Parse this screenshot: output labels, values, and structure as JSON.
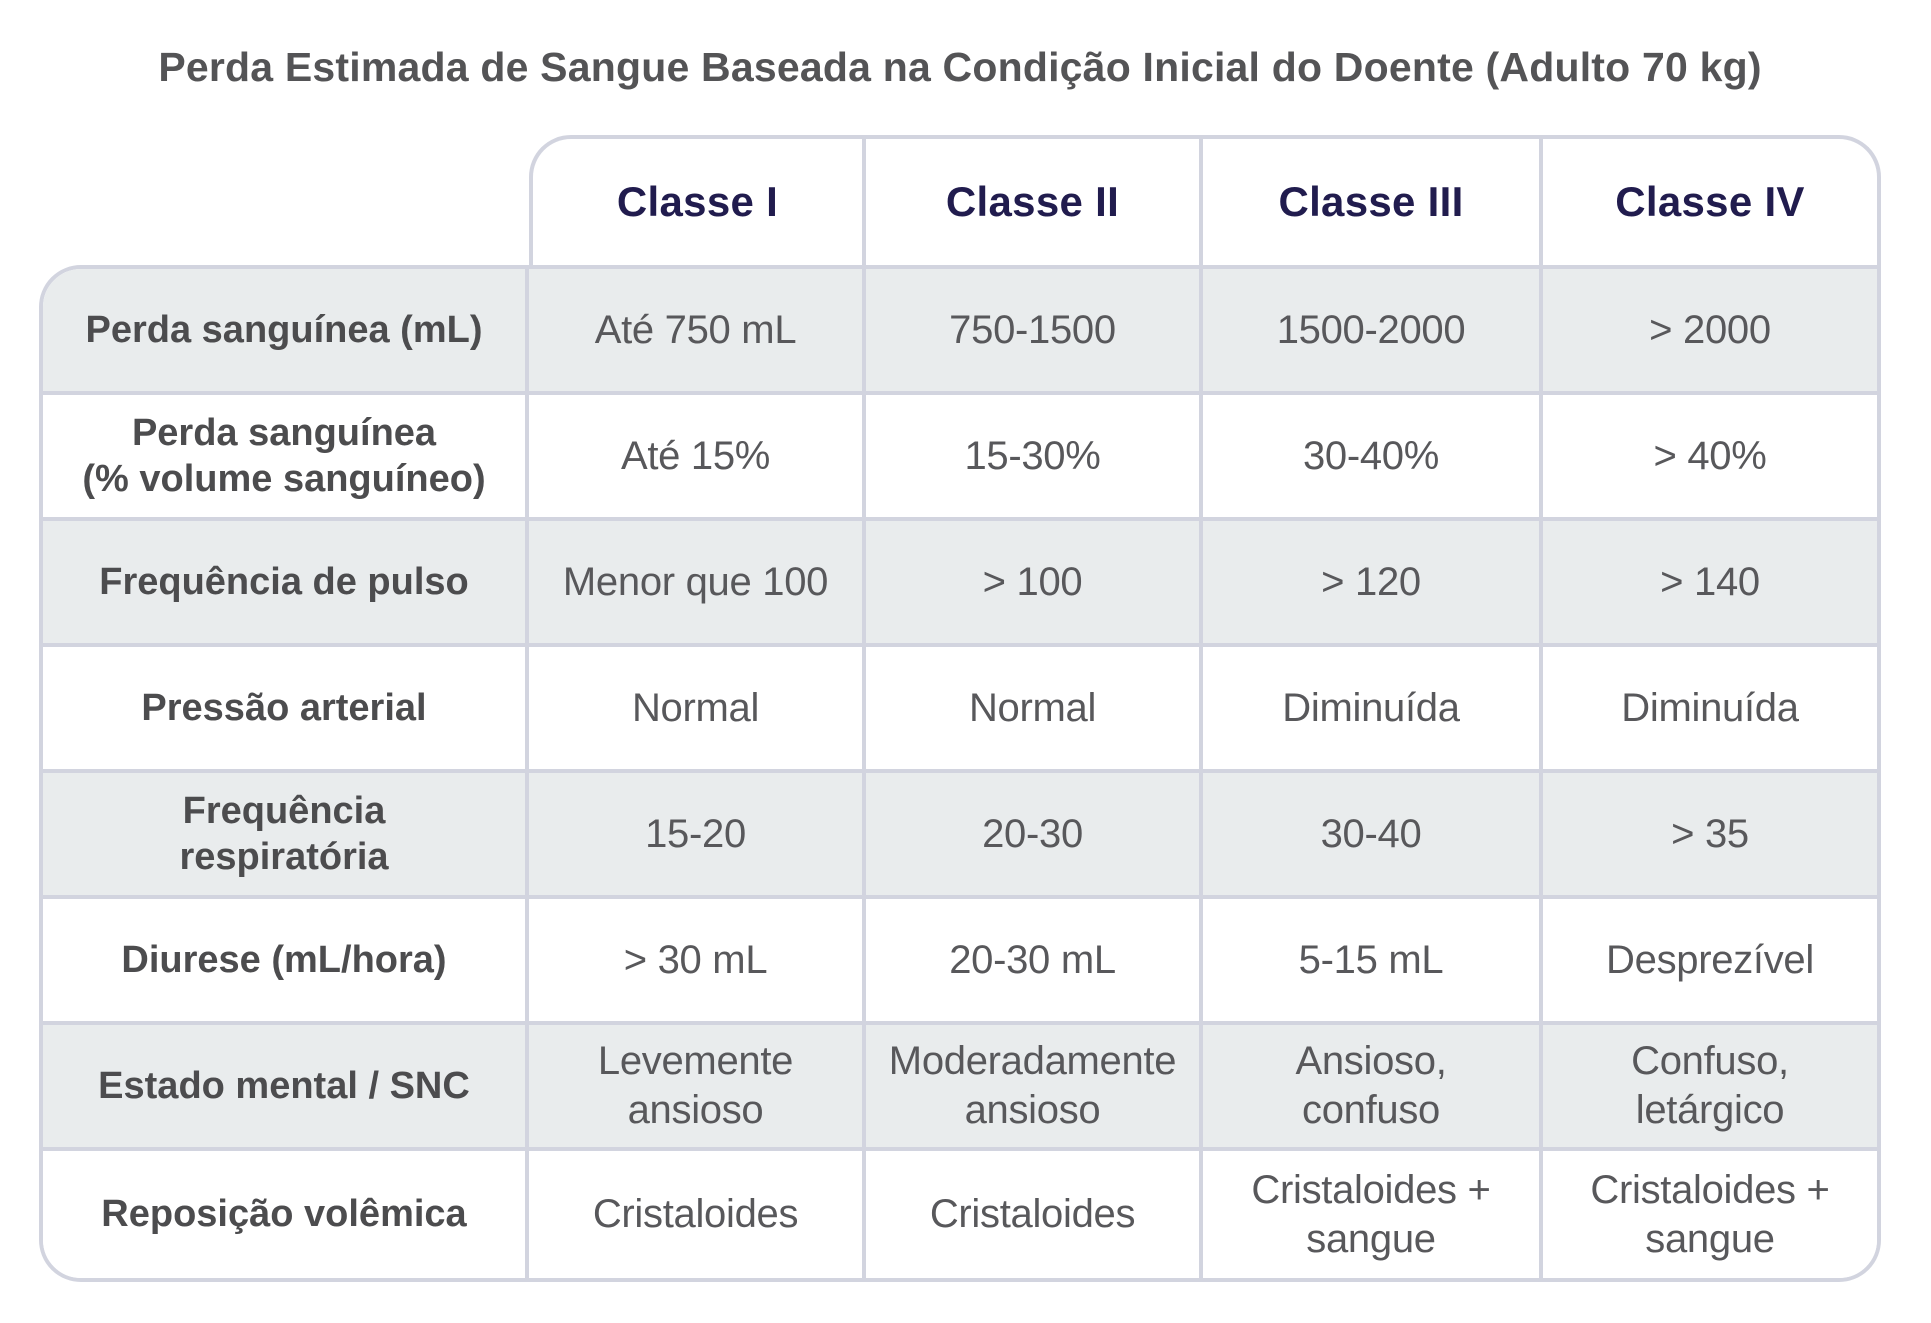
{
  "title": "Perda Estimada de Sangue Baseada na Condição Inicial do Doente (Adulto 70 kg)",
  "table": {
    "column_headers": [
      "Classe I",
      "Classe II",
      "Classe III",
      "Classe IV"
    ],
    "rows": [
      {
        "label": "Perda sanguínea (mL)",
        "values": [
          "Até 750 mL",
          "750-1500",
          "1500-2000",
          "> 2000"
        ]
      },
      {
        "label": "Perda sanguínea\n(% volume sanguíneo)",
        "values": [
          "Até 15%",
          "15-30%",
          "30-40%",
          "> 40%"
        ]
      },
      {
        "label": "Frequência de pulso",
        "values": [
          "Menor que 100",
          "> 100",
          "> 120",
          "> 140"
        ]
      },
      {
        "label": "Pressão arterial",
        "values": [
          "Normal",
          "Normal",
          "Diminuída",
          "Diminuída"
        ]
      },
      {
        "label": "Frequência\nrespiratória",
        "values": [
          "15-20",
          "20-30",
          "30-40",
          "> 35"
        ]
      },
      {
        "label": "Diurese (mL/hora)",
        "values": [
          "> 30 mL",
          "20-30 mL",
          "5-15 mL",
          "Desprezível"
        ]
      },
      {
        "label": "Estado mental / SNC",
        "values": [
          "Levemente\nansioso",
          "Moderadamente\nansioso",
          "Ansioso,\nconfuso",
          "Confuso,\nletárgico"
        ]
      },
      {
        "label": "Reposição volêmica",
        "values": [
          "Cristaloides",
          "Cristaloides",
          "Cristaloides +\nsangue",
          "Cristaloides +\nsangue"
        ]
      }
    ]
  },
  "colors": {
    "grid_line": "#d2d4df",
    "shaded_row": "#e9eced",
    "header_text": "#211c4e",
    "row_label_text": "#4c4c4e",
    "cell_text": "#58585b",
    "title_text": "#545456"
  }
}
